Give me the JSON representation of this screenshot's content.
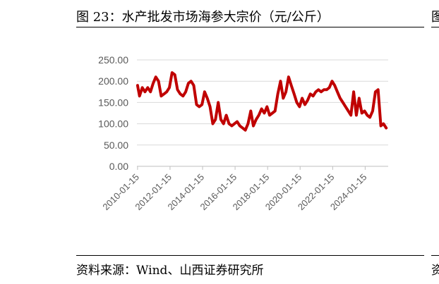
{
  "figure": {
    "title": "图 23：水产批发市场海参大宗价（元/公斤）",
    "source": "资料来源：Wind、山西证券研究所",
    "next_title_fragment": "图",
    "next_source_fragment": "资"
  },
  "chart_data": {
    "type": "line",
    "title": "",
    "xlabel": "",
    "ylabel": "",
    "ylim": [
      0,
      250
    ],
    "y_ticks": [
      "0.00",
      "50.00",
      "100.00",
      "150.00",
      "200.00",
      "250.00"
    ],
    "x_ticks": [
      "2010-01-15",
      "2012-01-15",
      "2014-01-15",
      "2016-01-15",
      "2018-01-15",
      "2020-01-15",
      "2022-01-15",
      "2024-01-15"
    ],
    "x_range": [
      "2010-01-01",
      "2025-06-15"
    ],
    "grid": true,
    "legend": "none",
    "series": [
      {
        "color": "#C00000",
        "points": [
          [
            "2010-01-15",
            190
          ],
          [
            "2010-03-01",
            165
          ],
          [
            "2010-05-01",
            185
          ],
          [
            "2010-07-01",
            175
          ],
          [
            "2010-09-01",
            185
          ],
          [
            "2010-11-01",
            175
          ],
          [
            "2011-01-01",
            195
          ],
          [
            "2011-03-01",
            210
          ],
          [
            "2011-05-01",
            200
          ],
          [
            "2011-07-01",
            165
          ],
          [
            "2011-09-01",
            170
          ],
          [
            "2011-11-01",
            175
          ],
          [
            "2012-01-01",
            185
          ],
          [
            "2012-03-01",
            220
          ],
          [
            "2012-05-01",
            215
          ],
          [
            "2012-07-01",
            180
          ],
          [
            "2012-09-01",
            170
          ],
          [
            "2012-11-01",
            165
          ],
          [
            "2013-01-01",
            175
          ],
          [
            "2013-03-01",
            195
          ],
          [
            "2013-05-01",
            200
          ],
          [
            "2013-07-01",
            190
          ],
          [
            "2013-09-01",
            145
          ],
          [
            "2013-11-01",
            140
          ],
          [
            "2014-01-01",
            145
          ],
          [
            "2014-03-01",
            175
          ],
          [
            "2014-05-01",
            160
          ],
          [
            "2014-07-01",
            140
          ],
          [
            "2014-09-01",
            100
          ],
          [
            "2014-11-01",
            110
          ],
          [
            "2015-01-01",
            150
          ],
          [
            "2015-03-01",
            110
          ],
          [
            "2015-05-01",
            100
          ],
          [
            "2015-07-01",
            120
          ],
          [
            "2015-09-01",
            100
          ],
          [
            "2015-11-01",
            95
          ],
          [
            "2016-01-01",
            100
          ],
          [
            "2016-03-01",
            105
          ],
          [
            "2016-05-01",
            95
          ],
          [
            "2016-07-01",
            90
          ],
          [
            "2016-09-01",
            85
          ],
          [
            "2016-11-01",
            100
          ],
          [
            "2017-01-01",
            130
          ],
          [
            "2017-03-01",
            95
          ],
          [
            "2017-05-01",
            110
          ],
          [
            "2017-07-01",
            120
          ],
          [
            "2017-09-01",
            135
          ],
          [
            "2017-11-01",
            125
          ],
          [
            "2018-01-01",
            140
          ],
          [
            "2018-03-01",
            120
          ],
          [
            "2018-05-01",
            125
          ],
          [
            "2018-07-01",
            130
          ],
          [
            "2018-09-01",
            170
          ],
          [
            "2018-11-01",
            200
          ],
          [
            "2019-01-01",
            160
          ],
          [
            "2019-03-01",
            175
          ],
          [
            "2019-05-01",
            210
          ],
          [
            "2019-07-01",
            190
          ],
          [
            "2019-09-01",
            170
          ],
          [
            "2019-11-01",
            150
          ],
          [
            "2020-01-01",
            140
          ],
          [
            "2020-03-01",
            160
          ],
          [
            "2020-05-01",
            145
          ],
          [
            "2020-07-01",
            155
          ],
          [
            "2020-09-01",
            170
          ],
          [
            "2020-11-01",
            165
          ],
          [
            "2021-01-01",
            175
          ],
          [
            "2021-03-01",
            180
          ],
          [
            "2021-05-01",
            175
          ],
          [
            "2021-07-01",
            180
          ],
          [
            "2021-09-01",
            180
          ],
          [
            "2021-11-01",
            185
          ],
          [
            "2022-01-01",
            200
          ],
          [
            "2022-03-01",
            190
          ],
          [
            "2022-05-01",
            175
          ],
          [
            "2022-07-01",
            160
          ],
          [
            "2022-09-01",
            150
          ],
          [
            "2022-11-01",
            140
          ],
          [
            "2023-01-01",
            130
          ],
          [
            "2023-03-01",
            120
          ],
          [
            "2023-05-01",
            175
          ],
          [
            "2023-07-01",
            120
          ],
          [
            "2023-09-01",
            160
          ],
          [
            "2023-11-01",
            125
          ],
          [
            "2024-01-01",
            130
          ],
          [
            "2024-03-01",
            120
          ],
          [
            "2024-05-01",
            115
          ],
          [
            "2024-07-01",
            130
          ],
          [
            "2024-09-01",
            175
          ],
          [
            "2024-11-01",
            180
          ],
          [
            "2025-01-01",
            95
          ],
          [
            "2025-03-01",
            100
          ],
          [
            "2025-05-01",
            90
          ]
        ]
      }
    ]
  }
}
